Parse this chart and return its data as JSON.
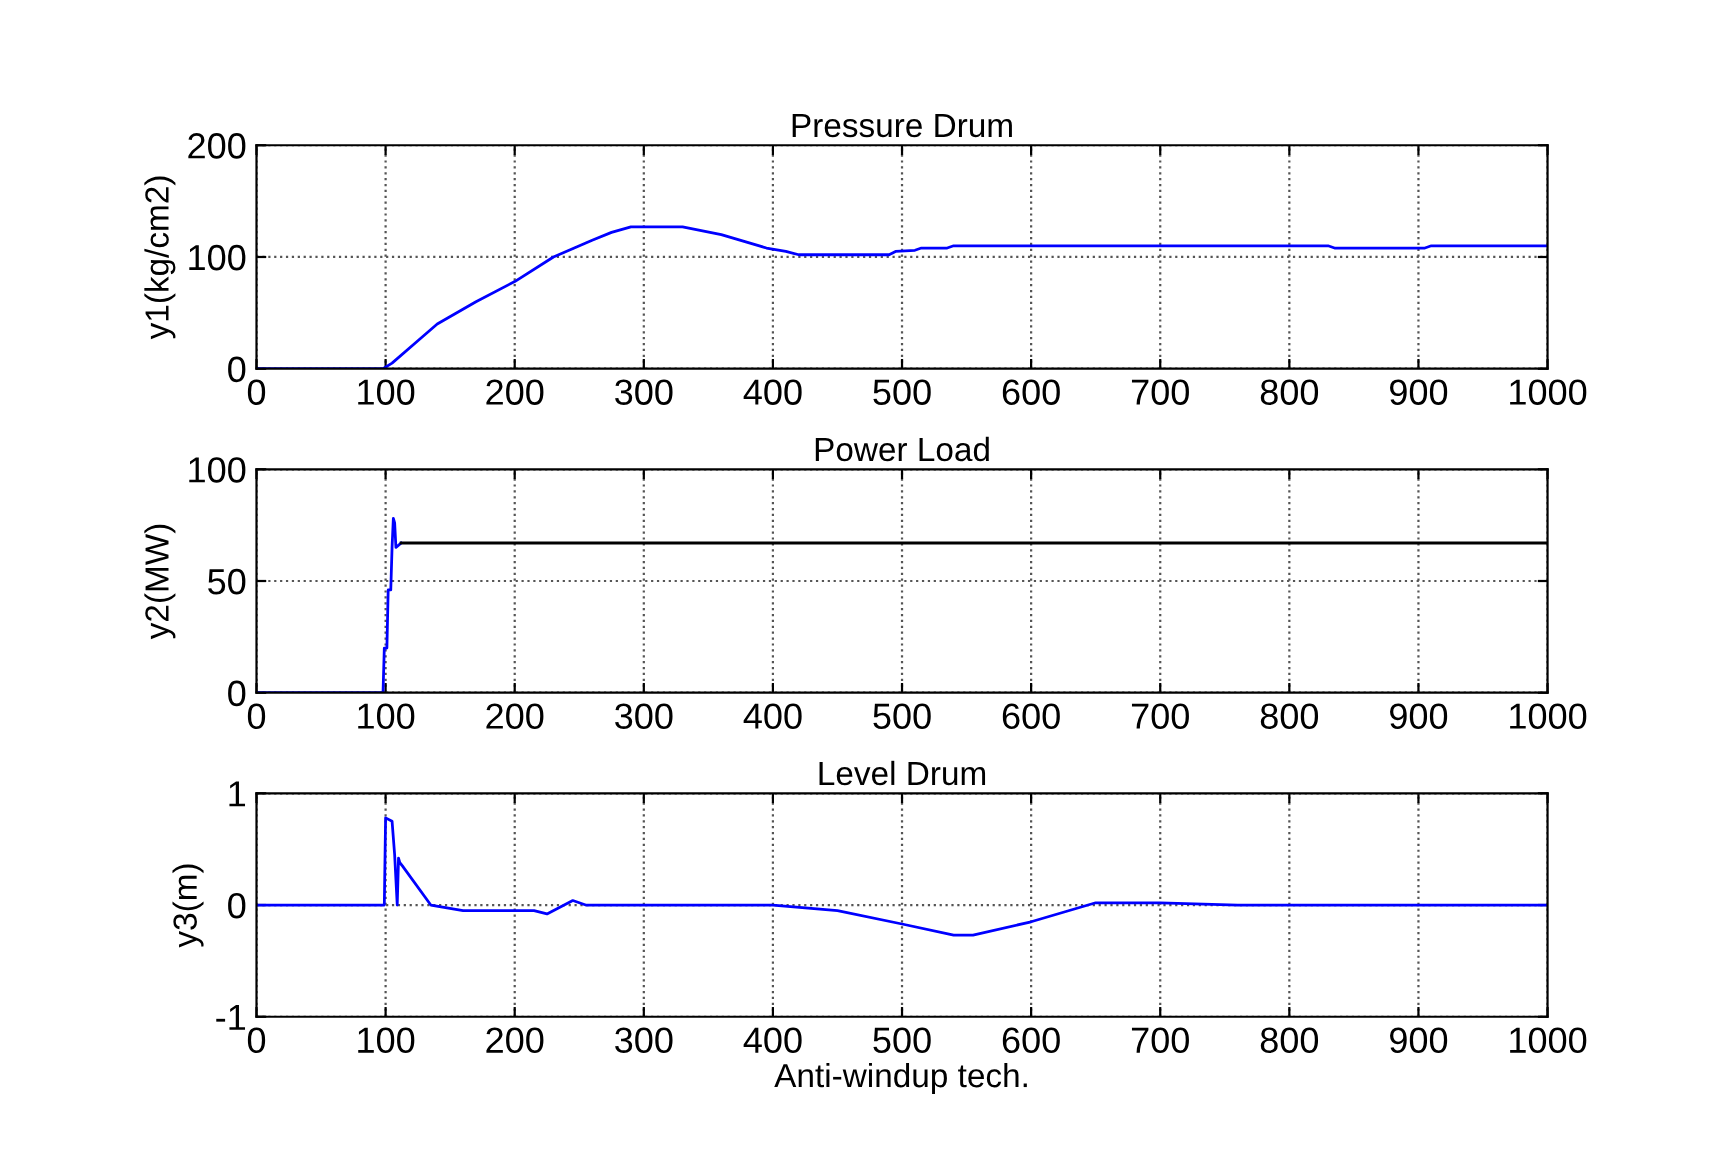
{
  "chart_data": [
    {
      "type": "line",
      "title": "Pressure Drum",
      "ylabel": "y1(kg/cm2)",
      "xlim": [
        0,
        1000
      ],
      "ylim": [
        0,
        200
      ],
      "xticks": [
        0,
        100,
        200,
        300,
        400,
        500,
        600,
        700,
        800,
        900,
        1000
      ],
      "yticks": [
        0,
        100,
        200
      ],
      "grid": true,
      "series": [
        {
          "color": "#0000ff",
          "x": [
            0,
            98,
            105,
            125,
            140,
            170,
            200,
            230,
            260,
            275,
            290,
            330,
            360,
            395,
            410,
            420,
            490,
            495,
            510,
            515,
            535,
            540,
            830,
            835,
            905,
            910,
            1000
          ],
          "values": [
            0,
            0,
            5,
            25,
            40,
            60,
            78,
            100,
            115,
            122,
            127,
            127,
            120,
            108,
            105,
            102,
            102,
            105,
            106,
            108,
            108,
            110,
            110,
            108,
            108,
            110,
            110
          ]
        }
      ]
    },
    {
      "type": "line",
      "title": "Power Load",
      "ylabel": "y2(MW)",
      "xlim": [
        0,
        1000
      ],
      "ylim": [
        0,
        100
      ],
      "xticks": [
        0,
        100,
        200,
        300,
        400,
        500,
        600,
        700,
        800,
        900,
        1000
      ],
      "yticks": [
        0,
        50,
        100
      ],
      "grid": true,
      "series": [
        {
          "color": "#0000ff",
          "x": [
            0,
            98,
            99,
            101,
            102,
            104,
            105,
            106,
            107,
            108,
            112
          ],
          "values": [
            0,
            0,
            20,
            20,
            46,
            46,
            65,
            78,
            76,
            65,
            67
          ]
        },
        {
          "color": "#000000",
          "x": [
            112,
            1000
          ],
          "values": [
            67,
            67
          ]
        }
      ]
    },
    {
      "type": "line",
      "title": "Level Drum",
      "ylabel": "y3(m)",
      "xlabel": "Anti-windup tech.",
      "xlim": [
        0,
        1000
      ],
      "ylim": [
        -1,
        1
      ],
      "xticks": [
        0,
        100,
        200,
        300,
        400,
        500,
        600,
        700,
        800,
        900,
        1000
      ],
      "yticks": [
        -1,
        0,
        1
      ],
      "grid": true,
      "series": [
        {
          "color": "#0000ff",
          "x": [
            0,
            99,
            100,
            105,
            107,
            109,
            110,
            111,
            113,
            135,
            160,
            215,
            225,
            245,
            255,
            400,
            450,
            500,
            540,
            555,
            600,
            650,
            700,
            760,
            1000
          ],
          "values": [
            0,
            0,
            0.78,
            0.75,
            0.45,
            0.0,
            0.42,
            0.38,
            0.35,
            0,
            -0.05,
            -0.05,
            -0.08,
            0.04,
            0,
            0,
            -0.05,
            -0.17,
            -0.27,
            -0.27,
            -0.15,
            0.02,
            0.02,
            0,
            0
          ]
        }
      ]
    }
  ]
}
